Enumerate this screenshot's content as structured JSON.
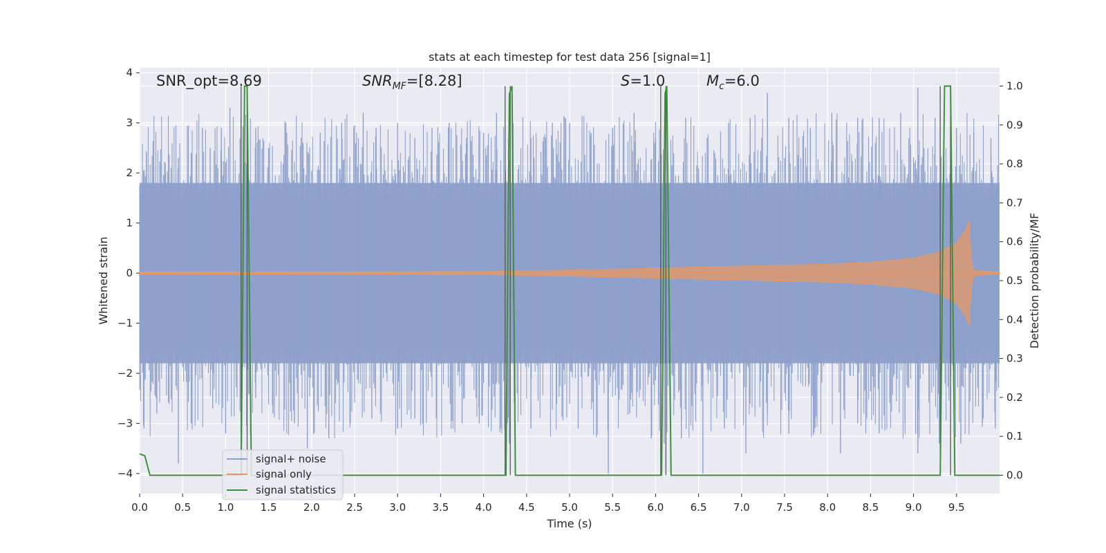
{
  "chart_data": {
    "type": "line",
    "title": "stats at each timestep for test data 256 [signal=1]",
    "xlabel": "Time (s)",
    "ylabel_left": "Whitened strain",
    "ylabel_right": "Detection probability/MF",
    "xlim": [
      0.0,
      10.0
    ],
    "ylim_left": [
      -4.4,
      4.1
    ],
    "ylim_right": [
      -0.047,
      1.047
    ],
    "x_ticks": [
      0.0,
      0.5,
      1.0,
      1.5,
      2.0,
      2.5,
      3.0,
      3.5,
      4.0,
      4.5,
      5.0,
      5.5,
      6.0,
      6.5,
      7.0,
      7.5,
      8.0,
      8.5,
      9.0,
      9.5
    ],
    "x_tick_labels": [
      "0.0",
      "0.5",
      "1.0",
      "1.5",
      "2.0",
      "2.5",
      "3.0",
      "3.5",
      "4.0",
      "4.5",
      "5.0",
      "5.5",
      "6.0",
      "6.5",
      "7.0",
      "7.5",
      "8.0",
      "8.5",
      "9.0",
      "9.5"
    ],
    "y_ticks_left": [
      -4,
      -3,
      -2,
      -1,
      0,
      1,
      2,
      3,
      4
    ],
    "y_tick_labels_left": [
      "−4",
      "−3",
      "−2",
      "−1",
      "0",
      "1",
      "2",
      "3",
      "4"
    ],
    "y_ticks_right": [
      0.0,
      0.1,
      0.2,
      0.3,
      0.4,
      0.5,
      0.6,
      0.7,
      0.8,
      0.9,
      1.0
    ],
    "y_tick_labels_right": [
      "0.0",
      "0.1",
      "0.2",
      "0.3",
      "0.4",
      "0.5",
      "0.6",
      "0.7",
      "0.8",
      "0.9",
      "1.0"
    ],
    "grid": true,
    "legend_position": "lower-left",
    "annotations": {
      "snr_opt": "SNR_opt=8.69",
      "snr_mf_base": "SNR",
      "snr_mf_sub": "MF",
      "snr_mf_value": "=[8.28]",
      "s_sym": "S",
      "s_value": "=1.0",
      "mc_base": "M",
      "mc_sub": "c",
      "mc_value": "=6.0"
    },
    "series": [
      {
        "name": "signal+ noise",
        "axis": "left",
        "color": "#8da0cb",
        "description_values": {
          "core_band": [
            -1.8,
            1.8
          ],
          "peaks_upper": [
            [
              0.08,
              2.4
            ],
            [
              0.3,
              2.0
            ],
            [
              0.45,
              2.3
            ],
            [
              0.6,
              2.4
            ],
            [
              0.73,
              2.9
            ],
            [
              0.82,
              2.5
            ],
            [
              0.95,
              2.9
            ],
            [
              1.05,
              3.3
            ],
            [
              1.35,
              2.9
            ],
            [
              1.5,
              2.5
            ],
            [
              1.7,
              3.0
            ],
            [
              1.9,
              2.6
            ],
            [
              2.1,
              2.8
            ],
            [
              2.35,
              3.0
            ],
            [
              2.6,
              3.2
            ],
            [
              2.75,
              2.9
            ],
            [
              3.0,
              3.0
            ],
            [
              3.2,
              2.7
            ],
            [
              3.4,
              2.9
            ],
            [
              3.6,
              3.0
            ],
            [
              3.8,
              2.6
            ],
            [
              4.0,
              2.8
            ],
            [
              4.15,
              3.2
            ],
            [
              4.55,
              2.7
            ],
            [
              4.8,
              3.0
            ],
            [
              5.0,
              3.0
            ],
            [
              5.25,
              2.8
            ],
            [
              5.5,
              2.9
            ],
            [
              5.75,
              3.2
            ],
            [
              6.0,
              2.7
            ],
            [
              6.35,
              3.1
            ],
            [
              6.6,
              2.7
            ],
            [
              6.85,
              3.0
            ],
            [
              7.1,
              3.1
            ],
            [
              7.3,
              3.6
            ],
            [
              7.55,
              3.1
            ],
            [
              7.8,
              2.9
            ],
            [
              8.05,
              3.2
            ],
            [
              8.35,
              3.1
            ],
            [
              8.6,
              3.1
            ],
            [
              8.85,
              3.2
            ],
            [
              9.05,
              3.7
            ],
            [
              9.25,
              3.1
            ],
            [
              9.5,
              2.9
            ],
            [
              9.7,
              2.8
            ],
            [
              9.9,
              2.7
            ]
          ],
          "peaks_lower": [
            [
              0.05,
              -3.1
            ],
            [
              0.2,
              -2.8
            ],
            [
              0.45,
              -3.8
            ],
            [
              0.6,
              -3.0
            ],
            [
              0.85,
              -2.7
            ],
            [
              1.0,
              -3.2
            ],
            [
              1.35,
              -2.5
            ],
            [
              1.55,
              -2.8
            ],
            [
              1.8,
              -3.0
            ],
            [
              1.95,
              -3.5
            ],
            [
              2.2,
              -3.3
            ],
            [
              2.45,
              -3.0
            ],
            [
              2.7,
              -2.9
            ],
            [
              3.0,
              -3.1
            ],
            [
              3.2,
              -2.9
            ],
            [
              3.45,
              -2.9
            ],
            [
              3.75,
              -3.0
            ],
            [
              3.95,
              -3.0
            ],
            [
              4.3,
              -3.4
            ],
            [
              4.55,
              -3.1
            ],
            [
              4.85,
              -2.6
            ],
            [
              5.1,
              -3.1
            ],
            [
              5.45,
              -4.0
            ],
            [
              5.7,
              -2.8
            ],
            [
              5.95,
              -3.3
            ],
            [
              6.1,
              -3.4
            ],
            [
              6.3,
              -3.3
            ],
            [
              6.55,
              -4.0
            ],
            [
              6.8,
              -3.1
            ],
            [
              7.05,
              -3.6
            ],
            [
              7.3,
              -2.8
            ],
            [
              7.55,
              -3.2
            ],
            [
              7.85,
              -3.1
            ],
            [
              8.15,
              -3.6
            ],
            [
              8.35,
              -3.0
            ],
            [
              8.6,
              -3.2
            ],
            [
              8.9,
              -3.0
            ],
            [
              9.05,
              -3.6
            ],
            [
              9.3,
              -3.4
            ],
            [
              9.55,
              -3.4
            ],
            [
              9.8,
              -3.0
            ],
            [
              9.95,
              -3.1
            ]
          ]
        }
      },
      {
        "name": "signal only",
        "axis": "left",
        "color": "#e59866",
        "envelope": [
          [
            0.0,
            0.02
          ],
          [
            2.0,
            0.02
          ],
          [
            4.0,
            0.03
          ],
          [
            5.0,
            0.06
          ],
          [
            6.0,
            0.1
          ],
          [
            7.0,
            0.14
          ],
          [
            8.0,
            0.18
          ],
          [
            8.5,
            0.22
          ],
          [
            9.0,
            0.3
          ],
          [
            9.3,
            0.42
          ],
          [
            9.5,
            0.6
          ],
          [
            9.6,
            0.85
          ],
          [
            9.65,
            1.05
          ],
          [
            9.67,
            0.3
          ],
          [
            9.7,
            0.05
          ],
          [
            10.0,
            0.02
          ]
        ]
      },
      {
        "name": "signal statistics",
        "axis": "right",
        "color": "#3a923a",
        "points": [
          [
            0.0,
            0.055
          ],
          [
            0.06,
            0.05
          ],
          [
            0.12,
            0.0
          ],
          [
            1.18,
            0.0
          ],
          [
            1.22,
            1.0
          ],
          [
            1.25,
            1.0
          ],
          [
            1.3,
            0.0
          ],
          [
            4.26,
            0.0
          ],
          [
            4.3,
            0.98
          ],
          [
            4.33,
            1.0
          ],
          [
            4.37,
            0.0
          ],
          [
            6.07,
            0.0
          ],
          [
            6.11,
            0.98
          ],
          [
            6.13,
            1.0
          ],
          [
            6.18,
            0.0
          ],
          [
            9.31,
            0.0
          ],
          [
            9.36,
            1.0
          ],
          [
            9.43,
            1.0
          ],
          [
            9.48,
            0.0
          ],
          [
            10.0,
            0.0
          ]
        ]
      }
    ],
    "vertical_markers": [
      1.18,
      1.25,
      4.25,
      4.31,
      6.06,
      6.12,
      9.31,
      9.43
    ],
    "vertical_marker_color": "#555555"
  }
}
